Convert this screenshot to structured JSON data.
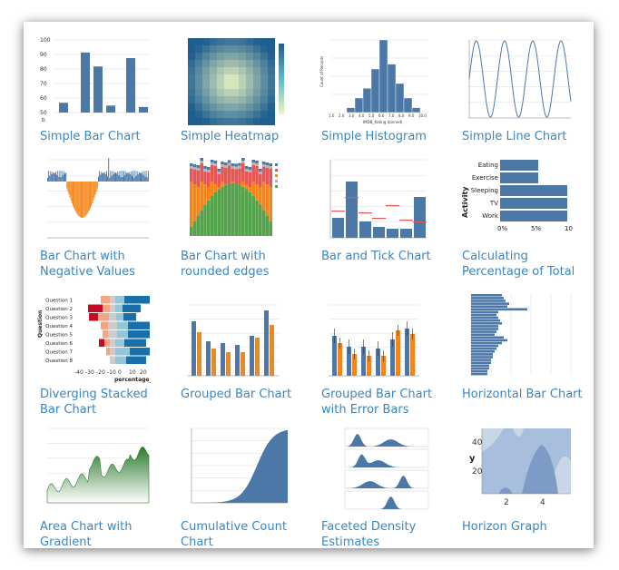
{
  "gallery": {
    "items": [
      {
        "label": "Simple Bar Chart",
        "thumb": "simple-bar"
      },
      {
        "label": "Simple Heatmap",
        "thumb": "heatmap"
      },
      {
        "label": "Simple Histogram",
        "thumb": "histogram"
      },
      {
        "label": "Simple Line Chart",
        "thumb": "line"
      },
      {
        "label": "Bar Chart with Negative Values",
        "thumb": "negative-bars"
      },
      {
        "label": "Bar Chart with rounded edges",
        "thumb": "stacked-weather"
      },
      {
        "label": "Bar and Tick Chart",
        "thumb": "bar-tick"
      },
      {
        "label": "Calculating Percentage of Total",
        "thumb": "percent-total"
      },
      {
        "label": "Diverging Stacked Bar Chart",
        "thumb": "diverging"
      },
      {
        "label": "Grouped Bar Chart",
        "thumb": "grouped"
      },
      {
        "label": "Grouped Bar Chart with Error Bars",
        "thumb": "grouped-error"
      },
      {
        "label": "Horizontal Bar Chart",
        "thumb": "horizontal"
      },
      {
        "label": "Area Chart with Gradient",
        "thumb": "area-gradient"
      },
      {
        "label": "Cumulative Count Chart",
        "thumb": "cumulative"
      },
      {
        "label": "Faceted Density Estimates",
        "thumb": "density"
      },
      {
        "label": "Horizon Graph",
        "thumb": "horizon"
      }
    ]
  },
  "simple_bar": {
    "y_ticks": [
      "100",
      "90",
      "80",
      "70",
      "60",
      "50"
    ],
    "y_label": "b",
    "values": [
      55,
      91,
      81,
      53,
      87,
      52
    ],
    "ylim": [
      48,
      100
    ],
    "color": "#4c78a8"
  },
  "histogram": {
    "values": [
      1,
      3,
      5,
      9,
      15,
      10,
      6,
      3,
      1
    ],
    "y_label": "Count of Records",
    "x_label": "IMDB_Rating (binned)",
    "x_ticks": [
      "1.0",
      "2.0",
      "3.0",
      "4.0",
      "5.0",
      "6.0",
      "7.0",
      "8.0",
      "9.0",
      "10.0"
    ]
  },
  "percent": {
    "y_title": "Activity",
    "categories": [
      "Eating",
      "Exercise",
      "Sleeping",
      "TV",
      "Work"
    ],
    "values": [
      5,
      5,
      8.8,
      8.8,
      8.8
    ],
    "x_ticks": [
      "0%",
      "5%",
      "10%"
    ]
  },
  "diverging": {
    "y_title": "Question",
    "questions": [
      "Question 1",
      "Question 2",
      "Question 3",
      "Question 4",
      "Question 5",
      "Question 6",
      "Question 7",
      "Question 8"
    ],
    "x_ticks": [
      "-40",
      "-30",
      "-20",
      "-10",
      "0",
      "10",
      "20"
    ],
    "x_label": "percentage_st"
  },
  "horizon": {
    "y_ticks": [
      "40",
      "20"
    ],
    "x_ticks": [
      "2",
      "4"
    ],
    "y_label": "y"
  },
  "colors": {
    "link": "#3a86bf",
    "primary": "#4c78a8",
    "orange": "#f58518",
    "red": "#e45756",
    "green": "#54a24b"
  }
}
